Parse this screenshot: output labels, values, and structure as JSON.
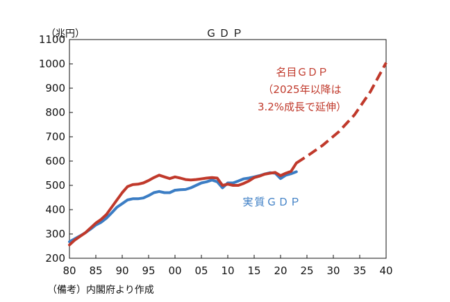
{
  "chart_data": {
    "type": "line",
    "title": "ＧＤＰ",
    "unit_label": "（兆円）",
    "source": "（備考）内閣府より作成",
    "xlim": [
      80,
      140
    ],
    "ylim": [
      200,
      1100
    ],
    "x_ticks": [
      80,
      85,
      90,
      95,
      100,
      105,
      110,
      115,
      120,
      125,
      130,
      135,
      140
    ],
    "x_tick_labels": [
      "80",
      "85",
      "90",
      "95",
      "00",
      "05",
      "10",
      "15",
      "20",
      "25",
      "30",
      "35",
      "40"
    ],
    "y_ticks": [
      200,
      300,
      400,
      500,
      600,
      700,
      800,
      900,
      1000,
      1100
    ],
    "y_tick_labels": [
      "200",
      "300",
      "400",
      "500",
      "600",
      "700",
      "800",
      "900",
      "1000",
      "1100"
    ],
    "grid": false,
    "series": [
      {
        "name": "名目ＧＤＰ",
        "color": "#c0392b",
        "style": "solid",
        "x": [
          80,
          81,
          82,
          83,
          84,
          85,
          86,
          87,
          88,
          89,
          90,
          91,
          92,
          93,
          94,
          95,
          96,
          97,
          98,
          99,
          100,
          101,
          102,
          103,
          104,
          105,
          106,
          107,
          108,
          109,
          110,
          111,
          112,
          113,
          114,
          115,
          116,
          117,
          118,
          119,
          120,
          121,
          122,
          123
        ],
        "values": [
          255,
          275,
          290,
          305,
          325,
          345,
          360,
          380,
          410,
          440,
          470,
          495,
          503,
          505,
          510,
          520,
          532,
          542,
          535,
          528,
          535,
          530,
          524,
          522,
          524,
          527,
          530,
          532,
          530,
          500,
          505,
          500,
          500,
          508,
          518,
          532,
          538,
          546,
          550,
          553,
          540,
          550,
          558,
          592
        ]
      },
      {
        "name": "名目ＧＤＰ",
        "color": "#c0392b",
        "style": "dashed",
        "x": [
          123,
          125,
          128,
          131,
          134,
          137,
          140
        ],
        "values": [
          592,
          620,
          665,
          720,
          790,
          885,
          1005
        ]
      },
      {
        "name": "実質ＧＤＰ",
        "color": "#3b7dc4",
        "style": "solid",
        "x": [
          80,
          81,
          82,
          83,
          84,
          85,
          86,
          87,
          88,
          89,
          90,
          91,
          92,
          93,
          94,
          95,
          96,
          97,
          98,
          99,
          100,
          101,
          102,
          103,
          104,
          105,
          106,
          107,
          108,
          109,
          110,
          111,
          112,
          113,
          114,
          115,
          116,
          117,
          118,
          119,
          120,
          121,
          122,
          123
        ],
        "values": [
          268,
          280,
          292,
          305,
          320,
          337,
          348,
          365,
          387,
          410,
          425,
          440,
          445,
          445,
          448,
          458,
          470,
          475,
          470,
          470,
          480,
          482,
          483,
          490,
          500,
          510,
          515,
          522,
          515,
          490,
          510,
          510,
          518,
          527,
          530,
          535,
          540,
          547,
          552,
          550,
          528,
          542,
          548,
          556
        ]
      }
    ],
    "annotations": {
      "nominal_label": "名目ＧＤＰ",
      "nominal_note_1": "（2025年以降は",
      "nominal_note_2": "3.2%成長で延伸）",
      "real_label": "実質ＧＤＰ"
    }
  }
}
